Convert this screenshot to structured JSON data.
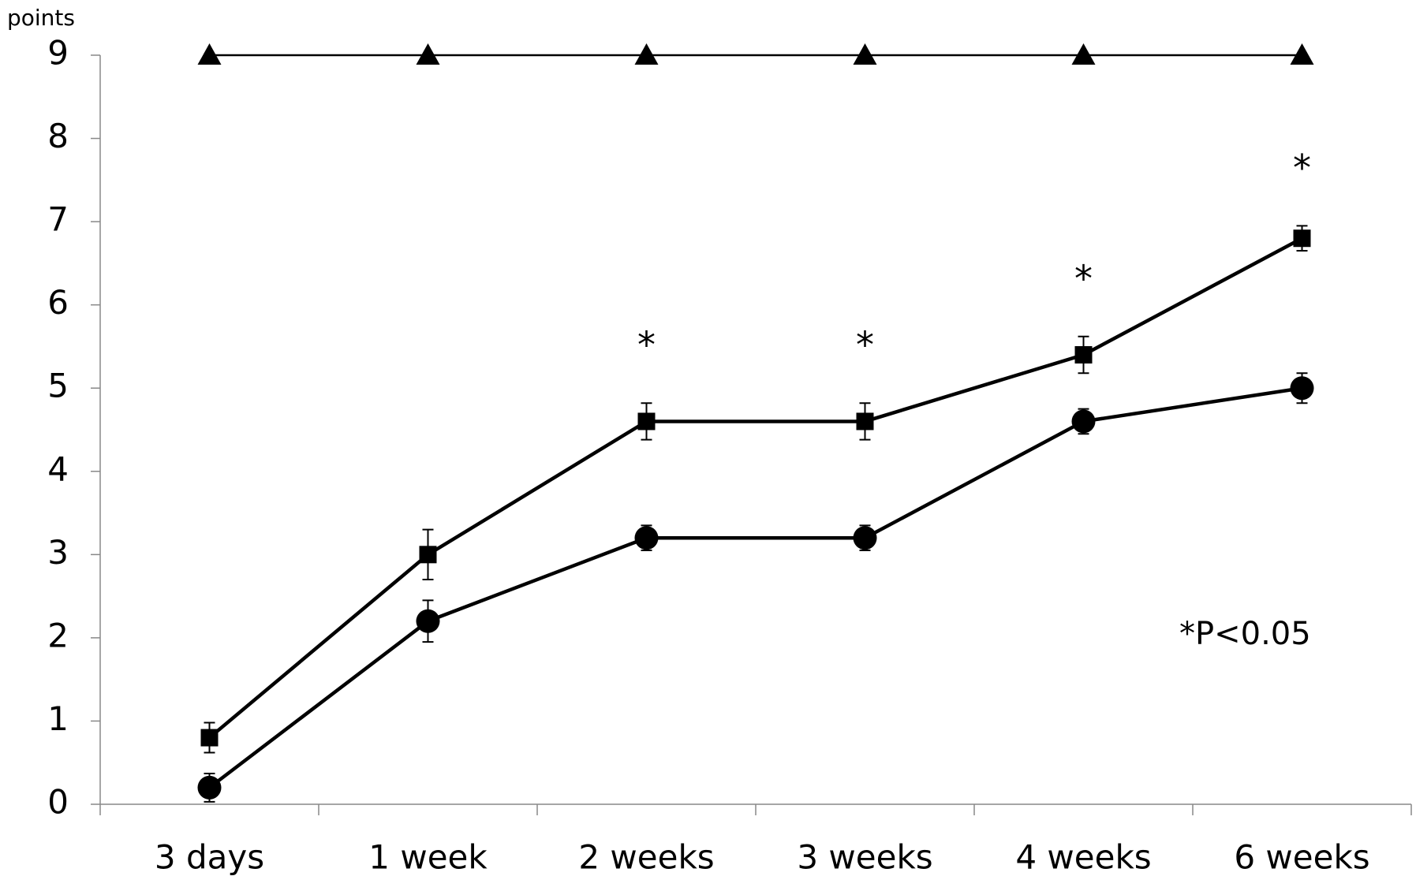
{
  "chart_data": {
    "type": "line",
    "y_label": "points",
    "categories": [
      "3 days",
      "1 week",
      "2 weeks",
      "3 weeks",
      "4 weeks",
      "6 weeks"
    ],
    "series": [
      {
        "color": "#000000",
        "marker": "triangle",
        "values": [
          9,
          9,
          9,
          9,
          9,
          9
        ]
      },
      {
        "color": "#000000",
        "marker": "square",
        "values": [
          0.8,
          3.0,
          4.6,
          4.6,
          5.4,
          6.8
        ],
        "errors": [
          0.18,
          0.3,
          0.22,
          0.22,
          0.22,
          0.15
        ]
      },
      {
        "color": "#000000",
        "marker": "circle",
        "values": [
          0.2,
          2.2,
          3.2,
          3.2,
          4.6,
          5.0
        ],
        "errors": [
          0.17,
          0.25,
          0.15,
          0.15,
          0.15,
          0.18
        ]
      }
    ],
    "significance_labels": [
      null,
      null,
      "*",
      "*",
      "*",
      "*"
    ],
    "note": "*P<0.05",
    "ylim": [
      0,
      9
    ],
    "yticks": [
      0,
      1,
      2,
      3,
      4,
      5,
      6,
      7,
      8,
      9
    ],
    "grid": false
  }
}
